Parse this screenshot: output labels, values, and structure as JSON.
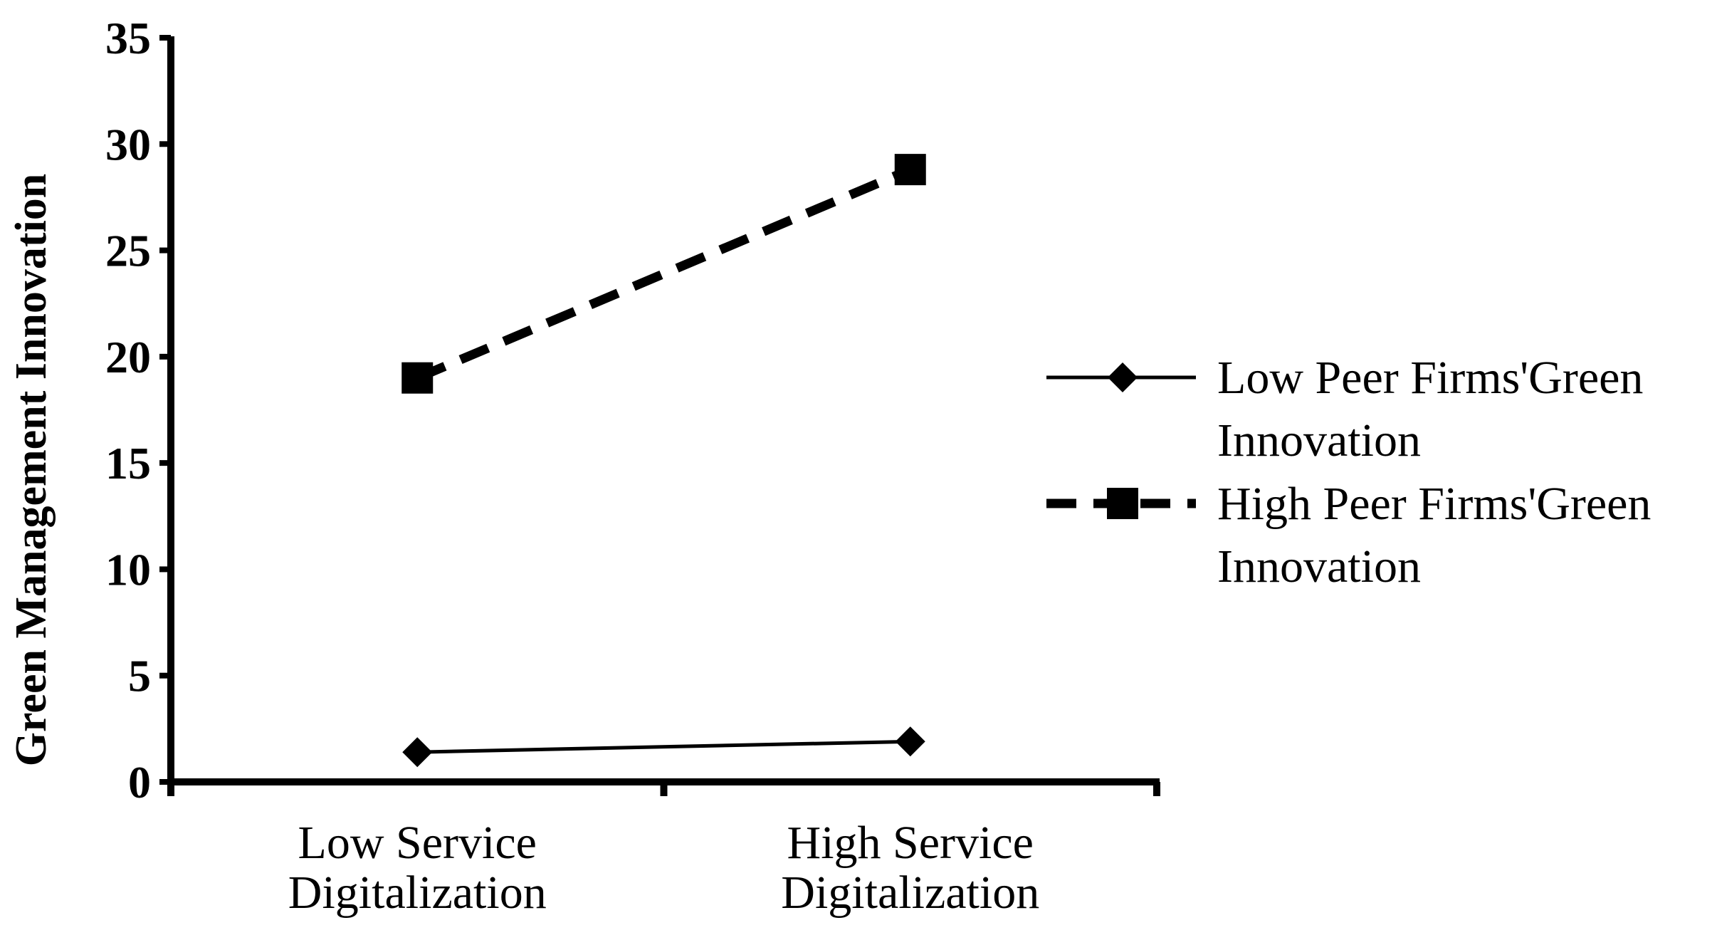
{
  "chart_data": {
    "type": "line",
    "title": "",
    "ylabel": "Green Management Innovation",
    "xlabel": "",
    "categories": [
      [
        "Low Service",
        "Digitalization"
      ],
      [
        "High Service",
        "Digitalization"
      ]
    ],
    "ylim": [
      0,
      35
    ],
    "yticks": [
      0,
      5,
      10,
      15,
      20,
      25,
      30,
      35
    ],
    "grid": false,
    "legend_position": "right",
    "series": [
      {
        "name": [
          "Low Peer Firms'Green",
          "Innovation"
        ],
        "values": [
          1.4,
          1.9
        ],
        "marker": "diamond",
        "line_style": "solid",
        "color": "#000000"
      },
      {
        "name": [
          "High Peer Firms'Green",
          "Innovation"
        ],
        "values": [
          19.0,
          28.8
        ],
        "marker": "square",
        "line_style": "dashed",
        "color": "#000000"
      }
    ]
  }
}
